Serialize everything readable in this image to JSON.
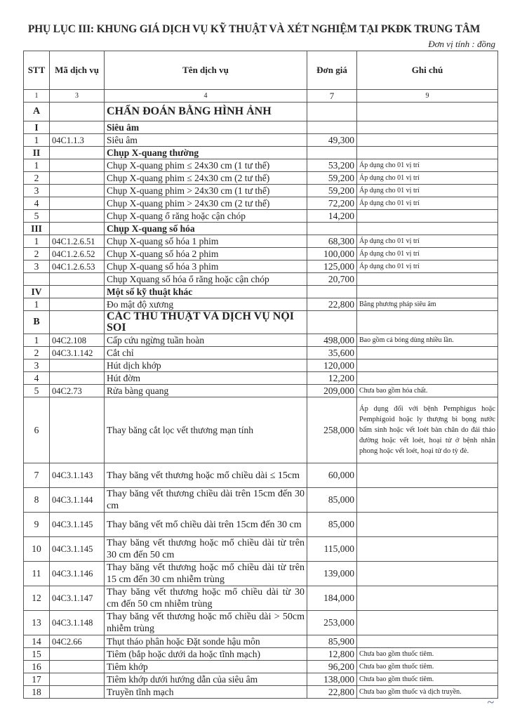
{
  "title": "PHỤ LỤC III: KHUNG GIÁ DỊCH VỤ KỸ THUẬT VÀ XÉT NGHIỆM TẠI PKĐK TRUNG TÂM",
  "unit": "Đơn vị tính : đồng",
  "headers": {
    "stt": "STT",
    "code": "Mã dịch vụ",
    "name": "Tên dịch vụ",
    "price": "Đơn giá",
    "note": "Ghi chú"
  },
  "index_row": [
    "1",
    "3",
    "4",
    "7",
    "9"
  ],
  "rows": [
    {
      "kind": "big",
      "stt": "A",
      "code": "",
      "name": "CHẨN ĐOÁN BẰNG HÌNH ẢNH",
      "price": "",
      "note": ""
    },
    {
      "kind": "sec",
      "stt": "I",
      "code": "",
      "name": "Siêu âm",
      "price": "",
      "note": ""
    },
    {
      "kind": "r",
      "stt": "1",
      "code": "04C1.1.3",
      "name": "Siêu âm",
      "price": "49,300",
      "note": ""
    },
    {
      "kind": "sec",
      "stt": "II",
      "code": "",
      "name": "Chụp X-quang thường",
      "price": "",
      "note": ""
    },
    {
      "kind": "r",
      "stt": "1",
      "code": "",
      "name": "Chụp X-quang phim  ≤ 24x30 cm (1 tư thế)",
      "price": "53,200",
      "note": "Áp dụng cho 01 vị trí"
    },
    {
      "kind": "r",
      "stt": "2",
      "code": "",
      "name": "Chụp X-quang phim  ≤ 24x30 cm (2 tư thế)",
      "price": "59,200",
      "note": "Áp dụng cho 01 vị trí"
    },
    {
      "kind": "r",
      "stt": "3",
      "code": "",
      "name": "Chụp X-quang phim > 24x30 cm (1 tư thế)",
      "price": "59,200",
      "note": "Áp dụng cho 01 vị trí"
    },
    {
      "kind": "r",
      "stt": "4",
      "code": "",
      "name": "Chụp X-quang phim > 24x30 cm (2 tư thế)",
      "price": "72,200",
      "note": "Áp dụng cho 01 vị trí"
    },
    {
      "kind": "r",
      "stt": "5",
      "code": "",
      "name": "Chụp X-quang ổ răng hoặc cận chóp",
      "price": "14,200",
      "note": ""
    },
    {
      "kind": "sec",
      "stt": "III",
      "code": "",
      "name": "Chụp X-quang số hóa",
      "price": "",
      "note": ""
    },
    {
      "kind": "r",
      "stt": "1",
      "code": "04C1.2.6.51",
      "name": "Chụp X-quang số hóa 1 phim",
      "price": "68,300",
      "note": "Áp dụng cho 01 vị trí"
    },
    {
      "kind": "r",
      "stt": "2",
      "code": "04C1.2.6.52",
      "name": "Chụp X-quang số hóa 2 phim",
      "price": "100,000",
      "note": "Áp dụng cho 01 vị trí"
    },
    {
      "kind": "r",
      "stt": "3",
      "code": "04C1.2.6.53",
      "name": "Chụp X-quang số hóa 3 phim",
      "price": "125,000",
      "note": "Áp dụng cho 01 vị trí"
    },
    {
      "kind": "r",
      "stt": "",
      "code": "",
      "name": "Chụp Xquang số hóa ổ răng hoặc cận chóp",
      "price": "20,700",
      "note": ""
    },
    {
      "kind": "sec",
      "stt": "IV",
      "code": "",
      "name": "Một số kỹ thuật khác",
      "price": "",
      "note": ""
    },
    {
      "kind": "r",
      "stt": "1",
      "code": "",
      "name": "Đo mật độ xương",
      "price": "22,800",
      "note": "Bằng phương pháp siêu âm"
    },
    {
      "kind": "big",
      "stt": "B",
      "code": "",
      "name": "CÁC THỦ THUẬT VÀ DỊCH VỤ NỘI SOI",
      "price": "",
      "note": ""
    },
    {
      "kind": "r",
      "stt": "1",
      "code": "04C2.108",
      "name": "Cấp cứu ngừng tuần hoàn",
      "price": "498,000",
      "note": "Bao gồm cả bóng dùng nhiều lần."
    },
    {
      "kind": "r",
      "stt": "2",
      "code": "04C3.1.142",
      "name": "Cắt chỉ",
      "price": "35,600",
      "note": ""
    },
    {
      "kind": "r",
      "stt": "3",
      "code": "",
      "name": "Hút dịch khớp",
      "price": "120,000",
      "note": ""
    },
    {
      "kind": "r",
      "stt": "4",
      "code": "",
      "name": "Hút đờm",
      "price": "12,200",
      "note": ""
    },
    {
      "kind": "r",
      "stt": "5",
      "code": "04C2.73",
      "name": "Rửa bàng quang",
      "price": "209,000",
      "note": "Chưa bao gồm hóa chất."
    },
    {
      "kind": "tall",
      "stt": "6",
      "code": "",
      "name": "Thay băng cắt lọc vết thương mạn tính",
      "price": "258,000",
      "note": "Áp dụng đối với bệnh Pemphigus hoặc Pemphigoid hoặc ly thượng bì bọng nước bẩm sinh hoặc vết loét bàn chân do đái tháo đường hoặc vết loét, hoại tử ở bệnh nhân phong hoặc vết loét, hoại tử do tỳ đè."
    },
    {
      "kind": "two",
      "stt": "7",
      "code": "04C3.1.143",
      "name": "Thay băng vết thương hoặc mổ chiều dài ≤ 15cm",
      "price": "60,000",
      "note": ""
    },
    {
      "kind": "two",
      "stt": "8",
      "code": "04C3.1.144",
      "name": "Thay băng vết thương chiều dài trên 15cm đến 30 cm",
      "price": "85,000",
      "note": ""
    },
    {
      "kind": "two",
      "stt": "9",
      "code": "04C3.1.145",
      "name": "Thay băng vết  mổ chiều dài trên 15cm đến 30 cm",
      "price": "85,000",
      "note": ""
    },
    {
      "kind": "two",
      "stt": "10",
      "code": "04C3.1.145",
      "name": "Thay băng vết thương hoặc mổ chiều dài từ trên 30 cm đến 50 cm",
      "price": "115,000",
      "note": ""
    },
    {
      "kind": "two",
      "stt": "11",
      "code": "04C3.1.146",
      "name": "Thay băng vết thương hoặc mổ chiều dài từ trên 15 cm đến 30 cm nhiễm trùng",
      "price": "139,000",
      "note": ""
    },
    {
      "kind": "two",
      "stt": "12",
      "code": "04C3.1.147",
      "name": "Thay băng vết thương hoặc mổ chiều dài từ 30 cm đến 50 cm nhiễm trùng",
      "price": "184,000",
      "note": ""
    },
    {
      "kind": "two",
      "stt": "13",
      "code": "04C3.1.148",
      "name": "Thay băng vết thương hoặc mổ chiều dài > 50cm nhiễm trùng",
      "price": "253,000",
      "note": ""
    },
    {
      "kind": "r",
      "stt": "14",
      "code": "04C2.66",
      "name": "Thụt tháo phân hoặc Đặt sonde hậu môn",
      "price": "85,900",
      "note": ""
    },
    {
      "kind": "r",
      "stt": "15",
      "code": "",
      "name": "Tiêm (bắp hoặc dưới da hoặc tĩnh mạch)",
      "price": "12,800",
      "note": "Chưa bao gồm thuốc tiêm."
    },
    {
      "kind": "r",
      "stt": "16",
      "code": "",
      "name": "Tiêm khớp",
      "price": "96,200",
      "note": "Chưa bao gồm thuốc tiêm."
    },
    {
      "kind": "r",
      "stt": "17",
      "code": "",
      "name": "Tiêm khớp dưới hướng dẫn của siêu âm",
      "price": "138,000",
      "note": "Chưa bao gồm thuốc tiêm."
    },
    {
      "kind": "r",
      "stt": "18",
      "code": "",
      "name": "Truyền tĩnh mạch",
      "price": "22,800",
      "note": "Chưa bao gồm thuốc và dịch truyền."
    }
  ]
}
